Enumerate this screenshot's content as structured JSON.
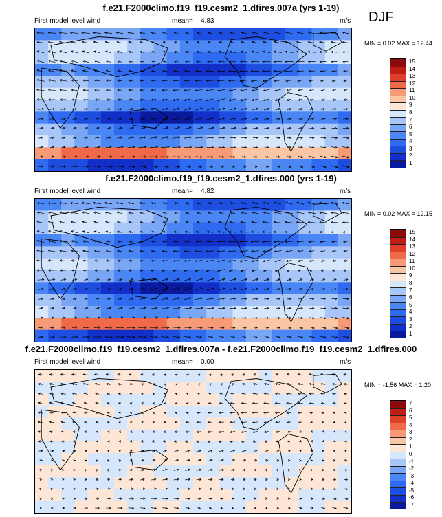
{
  "season": "DJF",
  "panels": [
    {
      "title": "f.e21.F2000climo.f19_f19.cesm2_1.dfires.007a (yrs 1-19)",
      "left_label": "First model level wind",
      "mean_label": "mean=",
      "mean_value": "4.83",
      "units": "m/s",
      "minmax": "MIN =  0.02 MAX =  12.44",
      "colorbar_labels": [
        "15",
        "14",
        "13",
        "12",
        "11",
        "10",
        "9",
        "8",
        "7",
        "6",
        "5",
        "4",
        "3",
        "2",
        "1"
      ]
    },
    {
      "title": "f.e21.F2000climo.f19_f19.cesm2_1.dfires.000 (yrs 1-19)",
      "left_label": "First model level wind",
      "mean_label": "mean=",
      "mean_value": "4.82",
      "units": "m/s",
      "minmax": "MIN =  0.02 MAX =  12.15",
      "colorbar_labels": [
        "15",
        "14",
        "13",
        "12",
        "11",
        "10",
        "9",
        "8",
        "7",
        "6",
        "5",
        "4",
        "3",
        "2",
        "1"
      ]
    },
    {
      "title": "f.e21.F2000climo.f19_f19.cesm2_1.dfires.007a - f.e21.F2000climo.f19_f19.cesm2_1.dfires.000",
      "left_label": "First model level wind",
      "mean_label": "mean=",
      "mean_value": "0.00",
      "units": "m/s",
      "minmax": "MIN = -1.56 MAX =  1.20",
      "colorbar_labels": [
        "7",
        "6",
        "5",
        "4",
        "3",
        "2",
        "1",
        "0",
        "-1",
        "-2",
        "-3",
        "-4",
        "-5",
        "-6",
        "-7"
      ]
    }
  ],
  "chart_data": [
    {
      "type": "heatmap",
      "title": "f.e21.F2000climo.f19_f19.cesm2_1.dfires.007a (yrs 1-19)",
      "variable": "First model level wind",
      "units": "m/s",
      "mean": 4.83,
      "min": 0.02,
      "max": 12.44,
      "colorbar_levels": [
        1,
        2,
        3,
        4,
        5,
        6,
        7,
        8,
        9,
        10,
        11,
        12,
        13,
        14,
        15
      ],
      "colors": [
        "#0a1a9c",
        "#1230c8",
        "#1e4ee0",
        "#2e6bf0",
        "#4a86f4",
        "#7aa6f6",
        "#a8c6f8",
        "#d6e6fb",
        "#fde6d6",
        "#fbc6a6",
        "#f79a78",
        "#f06a4a",
        "#e0402a",
        "#c01e14",
        "#8c0a0a"
      ]
    },
    {
      "type": "heatmap",
      "title": "f.e21.F2000climo.f19_f19.cesm2_1.dfires.000 (yrs 1-19)",
      "variable": "First model level wind",
      "units": "m/s",
      "mean": 4.82,
      "min": 0.02,
      "max": 12.15,
      "colorbar_levels": [
        1,
        2,
        3,
        4,
        5,
        6,
        7,
        8,
        9,
        10,
        11,
        12,
        13,
        14,
        15
      ],
      "colors": [
        "#0a1a9c",
        "#1230c8",
        "#1e4ee0",
        "#2e6bf0",
        "#4a86f4",
        "#7aa6f6",
        "#a8c6f8",
        "#d6e6fb",
        "#fde6d6",
        "#fbc6a6",
        "#f79a78",
        "#f06a4a",
        "#e0402a",
        "#c01e14",
        "#8c0a0a"
      ]
    },
    {
      "type": "heatmap",
      "title": "f.e21.F2000climo.f19_f19.cesm2_1.dfires.007a - f.e21.F2000climo.f19_f19.cesm2_1.dfires.000",
      "variable": "First model level wind",
      "units": "m/s",
      "mean": 0.0,
      "min": -1.56,
      "max": 1.2,
      "colorbar_levels": [
        -7,
        -6,
        -5,
        -4,
        -3,
        -2,
        -1,
        0,
        1,
        2,
        3,
        4,
        5,
        6,
        7
      ],
      "colors": [
        "#0a1a9c",
        "#1230c8",
        "#1e4ee0",
        "#2e6bf0",
        "#4a86f4",
        "#7aa6f6",
        "#a8c6f8",
        "#d6e6fb",
        "#fde6d6",
        "#fbc6a6",
        "#f79a78",
        "#f06a4a",
        "#e0402a",
        "#c01e14",
        "#8c0a0a"
      ]
    }
  ]
}
